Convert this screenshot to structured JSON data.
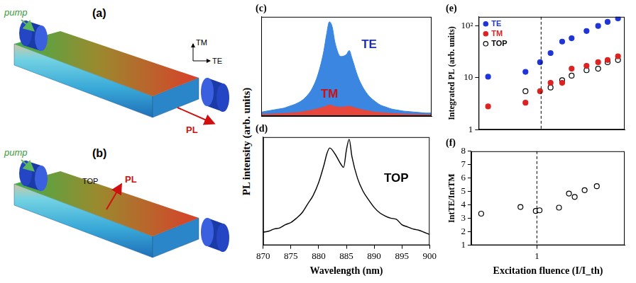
{
  "diagrams": [
    {
      "label": "(a)",
      "pump": "pump",
      "output": "PL",
      "polarizations": [
        "TM",
        "TE"
      ]
    },
    {
      "label": "(b)",
      "pump": "pump",
      "output": "PL",
      "direction": "TOP"
    }
  ],
  "chart_data": [
    {
      "title": "(c)",
      "type": "line",
      "ylabel": "PL intensity (arb. units)",
      "x": [
        870,
        871,
        872,
        873,
        874,
        875,
        876,
        877,
        878,
        879,
        880,
        881,
        881.5,
        882,
        882.5,
        883,
        884,
        885,
        885.5,
        886,
        887,
        888,
        889,
        890,
        891,
        892,
        893,
        894,
        895,
        896,
        897,
        898,
        899,
        900
      ],
      "series": [
        {
          "name": "TE",
          "type": "area",
          "color": "#3a86e0",
          "values": [
            4,
            5,
            6,
            7,
            8,
            10,
            12,
            15,
            20,
            28,
            42,
            65,
            82,
            95,
            90,
            74,
            60,
            62,
            66,
            58,
            40,
            28,
            20,
            15,
            11,
            9,
            7,
            6,
            5,
            4.5,
            4,
            3.5,
            3,
            3
          ]
        },
        {
          "name": "TM",
          "type": "area",
          "color": "#e8483c",
          "values": [
            1.5,
            1.8,
            2,
            2.3,
            2.6,
            3,
            3.4,
            4,
            5,
            6,
            7.5,
            9,
            10,
            11,
            10.5,
            9.5,
            9,
            9.5,
            10,
            9,
            7.5,
            6,
            5,
            4,
            3.5,
            3,
            2.6,
            2.3,
            2,
            1.8,
            1.6,
            1.5,
            1.4,
            1.3
          ]
        }
      ],
      "xlim": [
        870,
        900
      ],
      "ylim": [
        0,
        100
      ],
      "tick_labels": false,
      "grid": false,
      "annotations": [
        {
          "text": "TE",
          "x": 889,
          "y": 72,
          "color": "#1c2fb0"
        },
        {
          "text": "TM",
          "x": 882,
          "y": 22,
          "color": "#d01010"
        }
      ]
    },
    {
      "title": "(d)",
      "type": "line",
      "xlabel": "Wavelength (nm)",
      "x": [
        870,
        871,
        872,
        873,
        874,
        875,
        876,
        877,
        878,
        879,
        880,
        881,
        881.5,
        882,
        883,
        884,
        884.5,
        885,
        885.5,
        886,
        887,
        888,
        889,
        890,
        891,
        892,
        893,
        894,
        895,
        896,
        897,
        898,
        899,
        900
      ],
      "values": [
        12,
        13,
        15,
        16,
        19,
        21,
        25,
        30,
        38,
        46,
        58,
        75,
        85,
        90,
        84,
        75,
        72,
        88,
        98,
        82,
        62,
        50,
        42,
        35,
        30,
        27,
        25,
        24,
        19,
        17,
        15,
        14,
        12,
        10
      ],
      "color": "#000000",
      "xlim": [
        870,
        900
      ],
      "xticks": [
        870,
        875,
        880,
        885,
        890,
        895,
        900
      ],
      "ylim": [
        0,
        100
      ],
      "tick_labels": "x",
      "grid": false,
      "annotations": [
        {
          "text": "TOP",
          "x": 894,
          "y": 62,
          "color": "#000000"
        }
      ]
    },
    {
      "title": "(e)",
      "type": "scatter",
      "ylabel": "Integrated PL (arb. units)",
      "log": true,
      "xlim": [
        0.3,
        5
      ],
      "ylim": [
        1,
        150
      ],
      "yticks": [
        1,
        10,
        {
          "value": 100,
          "label": "10²"
        }
      ],
      "tick_labels": "y",
      "grid": false,
      "legend": "top-left",
      "vlines": [
        1
      ],
      "series": [
        {
          "name": "TE",
          "color": "#1f35d8",
          "marker": "circle",
          "x": [
            0.36,
            0.74,
            0.98,
            1.2,
            1.5,
            1.8,
            2.4,
            3.0,
            3.6,
            4.4
          ],
          "values": [
            10.5,
            13,
            20,
            30,
            50,
            58,
            80,
            100,
            120,
            140
          ]
        },
        {
          "name": "TM",
          "color": "#dd2222",
          "marker": "circle",
          "x": [
            0.36,
            0.74,
            0.98,
            1.2,
            1.5,
            1.8,
            2.4,
            3.0,
            3.6,
            4.4
          ],
          "values": [
            2.8,
            3.3,
            5.5,
            8,
            8,
            15,
            17,
            20,
            22,
            26
          ]
        },
        {
          "name": "TOP",
          "color": "#000000",
          "marker": "open circle",
          "x": [
            0.74,
            1.2,
            1.5,
            1.8,
            2.4,
            3.0,
            3.6,
            4.4
          ],
          "values": [
            5.5,
            6.5,
            9,
            11,
            14,
            15,
            20,
            22
          ]
        }
      ]
    },
    {
      "title": "(f)",
      "type": "scatter",
      "xlabel": "Excitation fluence (I/I_th)",
      "ylabel": "IntTE/IntTM",
      "log": "x",
      "xlim": [
        0.3,
        5
      ],
      "xticks": [
        1
      ],
      "ylim": [
        1,
        8
      ],
      "yticks": [
        1,
        2,
        3,
        4,
        5,
        6,
        7,
        8
      ],
      "grid": false,
      "vlines": [
        1
      ],
      "x": [
        0.36,
        0.74,
        0.98,
        1.05,
        1.5,
        1.8,
        2.0,
        2.4,
        3.0
      ],
      "values": [
        3.35,
        3.85,
        3.55,
        3.6,
        3.8,
        4.85,
        4.6,
        5.1,
        5.4
      ],
      "color": "#000000",
      "marker": "open circle"
    }
  ]
}
